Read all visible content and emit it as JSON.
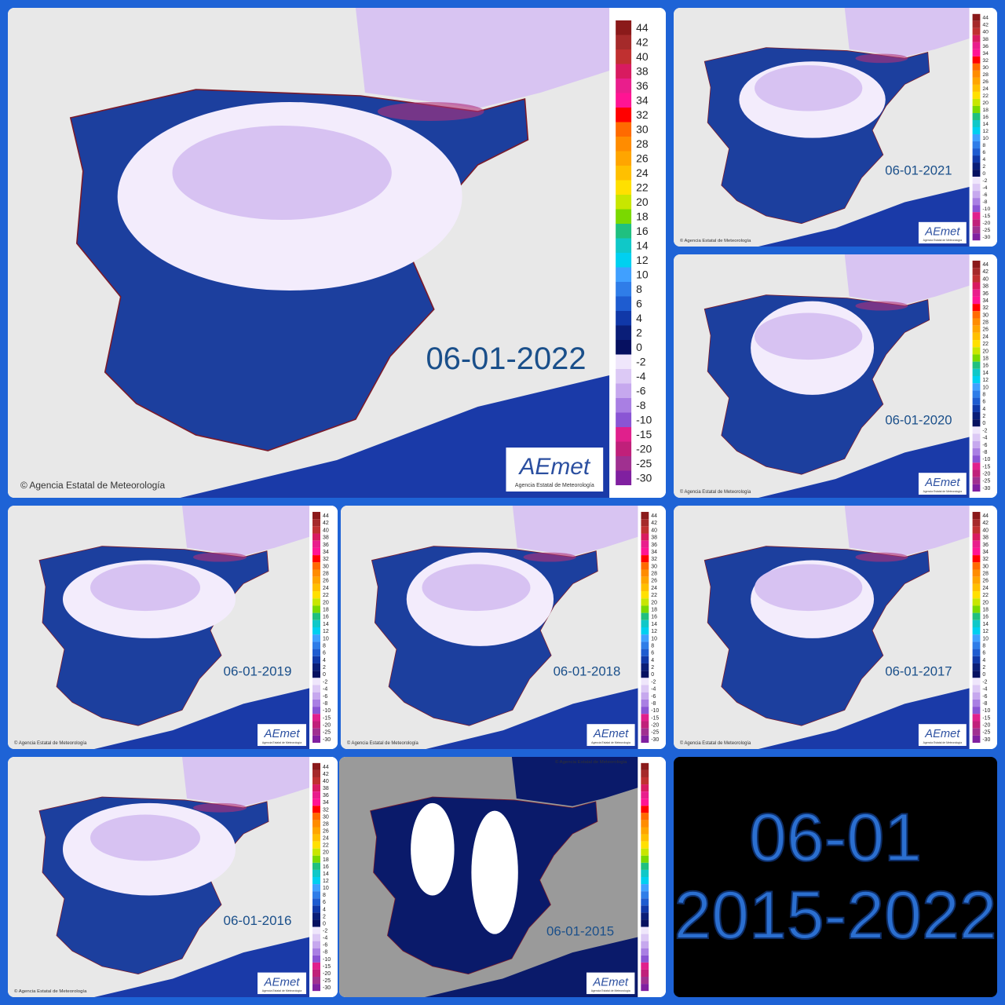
{
  "panels": [
    {
      "date": "06-01-2022"
    },
    {
      "date": "06-01-2021"
    },
    {
      "date": "06-01-2020"
    },
    {
      "date": "06-01-2019"
    },
    {
      "date": "06-01-2018"
    },
    {
      "date": "06-01-2017"
    },
    {
      "date": "06-01-2016"
    },
    {
      "date": "06-01-2015"
    }
  ],
  "copyright": "© Agencia Estatal de Meteorología",
  "logo": "AEmet",
  "logo_subtitle": "Agencia Estatal de Meteorología",
  "legend": {
    "labels": [
      "44",
      "42",
      "40",
      "38",
      "36",
      "34",
      "32",
      "30",
      "28",
      "26",
      "24",
      "22",
      "20",
      "18",
      "16",
      "14",
      "12",
      "10",
      "8",
      "6",
      "4",
      "2",
      "0",
      "-2",
      "-4",
      "-6",
      "-8",
      "-10",
      "-15",
      "-20",
      "-25",
      "-30"
    ]
  },
  "summary": {
    "line1": "06-01",
    "line2": "2015-2022"
  }
}
